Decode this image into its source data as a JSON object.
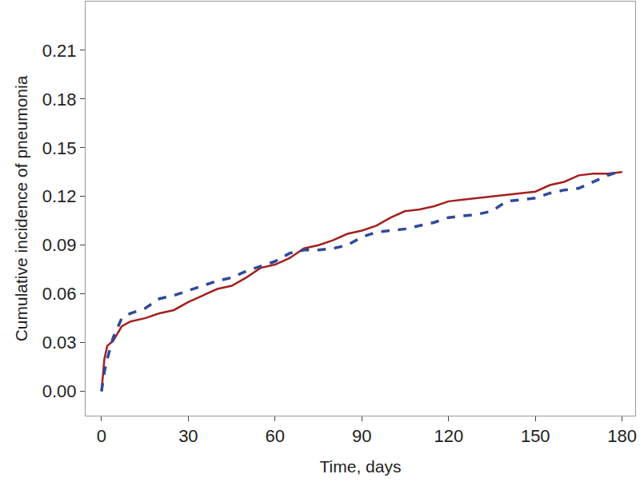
{
  "chart_data": {
    "type": "line",
    "x_label": "Time, days",
    "y_label": "Cumulative incidence of pneumonia",
    "x": [
      0,
      1,
      2,
      4,
      5,
      7,
      10,
      15,
      20,
      25,
      30,
      35,
      40,
      45,
      50,
      55,
      60,
      65,
      70,
      75,
      80,
      85,
      90,
      95,
      100,
      105,
      110,
      115,
      120,
      125,
      130,
      135,
      140,
      145,
      150,
      155,
      160,
      165,
      170,
      175,
      180
    ],
    "series": [
      {
        "color": "#a3201f",
        "line_style": "solid",
        "values": [
          0,
          0.02,
          0.028,
          0.031,
          0.034,
          0.04,
          0.043,
          0.045,
          0.048,
          0.05,
          0.055,
          0.059,
          0.063,
          0.065,
          0.07,
          0.076,
          0.078,
          0.082,
          0.088,
          0.09,
          0.093,
          0.097,
          0.099,
          0.102,
          0.107,
          0.111,
          0.112,
          0.114,
          0.117,
          0.118,
          0.119,
          0.12,
          0.121,
          0.122,
          0.123,
          0.127,
          0.129,
          0.133,
          0.134,
          0.134,
          0.135
        ]
      },
      {
        "color": "#2e4a9a",
        "line_style": "dashed",
        "values": [
          0,
          0.012,
          0.02,
          0.033,
          0.037,
          0.045,
          0.048,
          0.051,
          0.057,
          0.059,
          0.062,
          0.065,
          0.068,
          0.07,
          0.074,
          0.077,
          0.08,
          0.085,
          0.087,
          0.087,
          0.088,
          0.09,
          0.095,
          0.098,
          0.099,
          0.1,
          0.102,
          0.104,
          0.107,
          0.108,
          0.109,
          0.111,
          0.117,
          0.118,
          0.119,
          0.122,
          0.124,
          0.125,
          0.129,
          0.133,
          0.136
        ]
      }
    ],
    "xlim": [
      -5.5,
      184.5
    ],
    "xticks": [
      0,
      30,
      60,
      90,
      120,
      150,
      180
    ],
    "ylim": [
      -0.015,
      0.24
    ],
    "yticks": [
      {
        "value": 0,
        "label": "0.00"
      },
      {
        "value": 0.03,
        "label": "0.03"
      },
      {
        "value": 0.06,
        "label": "0.06"
      },
      {
        "value": 0.09,
        "label": "0.09"
      },
      {
        "value": 0.12,
        "label": "0.12"
      },
      {
        "value": 0.15,
        "label": "0.15"
      },
      {
        "value": 0.18,
        "label": "0.18"
      },
      {
        "value": 0.21,
        "label": "0.21"
      }
    ],
    "grid": false
  }
}
